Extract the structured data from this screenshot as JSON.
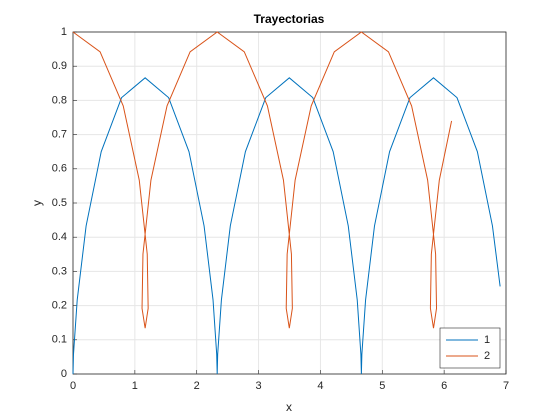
{
  "chart_data": {
    "type": "line",
    "title": "Trayectorias",
    "x_label": "x",
    "y_label": "y",
    "xlim": [
      0,
      7
    ],
    "ylim": [
      0,
      1
    ],
    "xticks": [
      0,
      1,
      2,
      3,
      4,
      5,
      6,
      7
    ],
    "yticks": [
      0,
      0.1,
      0.2,
      0.3,
      0.4,
      0.5,
      0.6,
      0.7,
      0.8,
      0.9,
      1
    ],
    "grid": true,
    "legend_position": "lower-right",
    "series": [
      {
        "name": "1",
        "color": "#0072bd",
        "x": [
          0,
          0.008,
          0.068,
          0.212,
          0.456,
          0.785,
          1.166,
          1.546,
          1.875,
          2.119,
          2.264,
          2.323,
          2.331,
          2.339,
          2.399,
          2.543,
          2.787,
          3.116,
          3.497,
          3.877,
          4.206,
          4.45,
          4.595,
          4.654,
          4.662,
          4.67,
          4.73,
          4.874,
          5.118,
          5.447,
          5.828,
          6.208,
          6.537,
          6.781,
          6.905
        ],
        "values": [
          0,
          0.058,
          0.2165,
          0.433,
          0.65,
          0.808,
          0.866,
          0.808,
          0.65,
          0.433,
          0.2165,
          0.058,
          0,
          0.058,
          0.2165,
          0.433,
          0.65,
          0.808,
          0.866,
          0.808,
          0.65,
          0.433,
          0.2165,
          0.058,
          0,
          0.058,
          0.2165,
          0.433,
          0.65,
          0.808,
          0.866,
          0.808,
          0.65,
          0.433,
          0.256
        ]
      },
      {
        "name": "2",
        "color": "#d95319",
        "x": [
          0,
          0.438,
          0.812,
          1.071,
          1.2,
          1.215,
          1.166,
          1.116,
          1.131,
          1.26,
          1.52,
          1.893,
          2.331,
          2.769,
          3.143,
          3.402,
          3.531,
          3.546,
          3.497,
          3.447,
          3.462,
          3.591,
          3.851,
          4.224,
          4.662,
          5.1,
          5.474,
          5.733,
          5.862,
          5.877,
          5.828,
          5.778,
          5.793,
          5.922,
          6.12
        ],
        "values": [
          1,
          0.942,
          0.784,
          0.567,
          0.3505,
          0.192,
          0.134,
          0.192,
          0.3505,
          0.567,
          0.784,
          0.942,
          1,
          0.942,
          0.784,
          0.567,
          0.3505,
          0.192,
          0.134,
          0.192,
          0.3505,
          0.567,
          0.784,
          0.942,
          1,
          0.942,
          0.784,
          0.567,
          0.3505,
          0.192,
          0.134,
          0.192,
          0.3505,
          0.567,
          0.74
        ]
      }
    ]
  }
}
